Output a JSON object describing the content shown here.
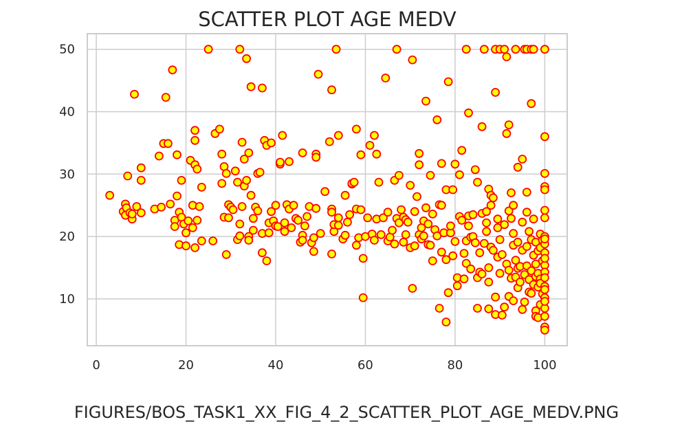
{
  "chart_data": {
    "type": "scatter",
    "title": "SCATTER PLOT AGE MEDV",
    "xlabel": "",
    "ylabel": "",
    "xlim": [
      -2,
      105
    ],
    "ylim": [
      2.5,
      52.5
    ],
    "xticks": [
      0,
      20,
      40,
      60,
      80,
      100
    ],
    "yticks": [
      10,
      20,
      30,
      40,
      50
    ],
    "grid": true,
    "legend": "none",
    "marker_fill": "#ffff00",
    "marker_edge": "#ff0000",
    "points": [
      [
        3,
        26.6
      ],
      [
        6,
        24
      ],
      [
        6.5,
        25.2
      ],
      [
        6.7,
        24.6
      ],
      [
        6.5,
        23.4
      ],
      [
        7,
        29.7
      ],
      [
        7.5,
        23.8
      ],
      [
        8,
        22.8
      ],
      [
        8,
        23.6
      ],
      [
        8.5,
        42.8
      ],
      [
        9,
        24.8
      ],
      [
        10,
        23.8
      ],
      [
        10,
        31
      ],
      [
        10,
        29
      ],
      [
        13,
        24.4
      ],
      [
        14,
        32.9
      ],
      [
        14.5,
        24.7
      ],
      [
        15,
        34.9
      ],
      [
        15.5,
        42.3
      ],
      [
        16,
        34.9
      ],
      [
        16.5,
        25.2
      ],
      [
        17,
        46.7
      ],
      [
        17.5,
        22.6
      ],
      [
        17.5,
        21.6
      ],
      [
        18,
        33.1
      ],
      [
        18,
        26.5
      ],
      [
        18.5,
        23.9
      ],
      [
        18.5,
        18.7
      ],
      [
        19,
        29
      ],
      [
        19,
        23.1
      ],
      [
        19.5,
        22
      ],
      [
        20,
        20.6
      ],
      [
        20,
        18.5
      ],
      [
        20.5,
        22.5
      ],
      [
        21,
        32.2
      ],
      [
        21.5,
        25
      ],
      [
        21.5,
        21.4
      ],
      [
        22,
        37
      ],
      [
        22,
        35.4
      ],
      [
        22,
        31.5
      ],
      [
        22,
        18.2
      ],
      [
        22.5,
        30.8
      ],
      [
        22.5,
        22.6
      ],
      [
        23,
        24.8
      ],
      [
        23.5,
        19.3
      ],
      [
        23.5,
        27.9
      ],
      [
        25,
        50
      ],
      [
        26,
        19.3
      ],
      [
        26.5,
        36.5
      ],
      [
        27.5,
        37.2
      ],
      [
        28,
        33.2
      ],
      [
        28,
        28.5
      ],
      [
        28.5,
        23.1
      ],
      [
        28.5,
        31.2
      ],
      [
        29,
        17.1
      ],
      [
        29,
        30.1
      ],
      [
        29.5,
        23
      ],
      [
        29.5,
        25.1
      ],
      [
        30,
        24.7
      ],
      [
        30.5,
        24.3
      ],
      [
        31,
        30.5
      ],
      [
        31.5,
        28.7
      ],
      [
        31.5,
        19.5
      ],
      [
        32,
        20.1
      ],
      [
        32,
        22
      ],
      [
        32,
        50
      ],
      [
        32.5,
        35.1
      ],
      [
        32.5,
        24.8
      ],
      [
        33,
        28.1
      ],
      [
        33,
        32.4
      ],
      [
        33.5,
        29
      ],
      [
        33.5,
        48.5
      ],
      [
        34,
        20
      ],
      [
        34,
        33.4
      ],
      [
        34,
        19.4
      ],
      [
        34.5,
        44
      ],
      [
        34.5,
        26.6
      ],
      [
        35,
        22.9
      ],
      [
        35,
        21
      ],
      [
        35.5,
        24.7
      ],
      [
        36,
        24.1
      ],
      [
        36,
        30.1
      ],
      [
        36.5,
        30.3
      ],
      [
        37,
        17.4
      ],
      [
        37,
        20.5
      ],
      [
        37,
        43.8
      ],
      [
        37.5,
        35.4
      ],
      [
        38,
        34.6
      ],
      [
        38,
        16.1
      ],
      [
        38.5,
        22.2
      ],
      [
        38.5,
        20.6
      ],
      [
        39,
        35
      ],
      [
        39,
        24
      ],
      [
        39.5,
        22.5
      ],
      [
        40,
        21.7
      ],
      [
        40,
        25
      ],
      [
        40.5,
        21.6
      ],
      [
        41,
        31.6
      ],
      [
        41,
        31.9
      ],
      [
        41.5,
        36.2
      ],
      [
        42,
        22.2
      ],
      [
        42,
        20.8
      ],
      [
        42.5,
        25.1
      ],
      [
        43,
        24.4
      ],
      [
        43,
        32
      ],
      [
        43.5,
        21.4
      ],
      [
        44,
        25
      ],
      [
        44.5,
        22.9
      ],
      [
        45,
        22.6
      ],
      [
        45.5,
        19.1
      ],
      [
        46,
        33.4
      ],
      [
        46,
        20.2
      ],
      [
        46,
        19.4
      ],
      [
        46.5,
        21.7
      ],
      [
        47,
        23.2
      ],
      [
        47.5,
        24.8
      ],
      [
        48,
        19
      ],
      [
        48.5,
        19.8
      ],
      [
        48.5,
        17.6
      ],
      [
        49,
        24.5
      ],
      [
        49,
        33.2
      ],
      [
        49,
        32.7
      ],
      [
        49.5,
        46
      ],
      [
        50,
        20.5
      ],
      [
        51,
        27.2
      ],
      [
        52,
        35.2
      ],
      [
        52.5,
        17.2
      ],
      [
        52.5,
        24.4
      ],
      [
        52.5,
        23.9
      ],
      [
        52.5,
        43.5
      ],
      [
        53,
        20.8
      ],
      [
        53,
        21.9
      ],
      [
        53.5,
        50
      ],
      [
        54,
        36.2
      ],
      [
        54,
        21.8
      ],
      [
        54,
        23
      ],
      [
        55,
        19.6
      ],
      [
        55.5,
        26.6
      ],
      [
        55.5,
        20.2
      ],
      [
        56,
        22.3
      ],
      [
        56.5,
        23.5
      ],
      [
        57,
        28.4
      ],
      [
        57,
        28.5
      ],
      [
        57.5,
        28.7
      ],
      [
        58,
        37.2
      ],
      [
        58,
        18.6
      ],
      [
        58,
        24.4
      ],
      [
        58.5,
        19.8
      ],
      [
        59,
        24.3
      ],
      [
        59,
        33.1
      ],
      [
        59.5,
        10.2
      ],
      [
        59.5,
        16.5
      ],
      [
        60,
        20
      ],
      [
        60.5,
        23
      ],
      [
        61,
        34.6
      ],
      [
        61.5,
        20.4
      ],
      [
        62,
        36.2
      ],
      [
        62,
        19.4
      ],
      [
        62.5,
        33.2
      ],
      [
        62.5,
        22.8
      ],
      [
        63,
        28.7
      ],
      [
        63.5,
        20.3
      ],
      [
        64,
        23
      ],
      [
        64.5,
        45.4
      ],
      [
        65,
        23.9
      ],
      [
        65,
        19.3
      ],
      [
        65.5,
        19.9
      ],
      [
        66,
        21
      ],
      [
        66.5,
        18.8
      ],
      [
        66.5,
        29
      ],
      [
        67,
        22.9
      ],
      [
        67,
        50
      ],
      [
        67.5,
        29.8
      ],
      [
        67.5,
        22.2
      ],
      [
        68,
        24.3
      ],
      [
        68.5,
        23.1
      ],
      [
        68.5,
        19.1
      ],
      [
        69,
        22.7
      ],
      [
        69,
        20.3
      ],
      [
        69.5,
        22.3
      ],
      [
        70,
        18.2
      ],
      [
        70,
        28.2
      ],
      [
        70.5,
        48.3
      ],
      [
        70.5,
        11.7
      ],
      [
        71,
        24
      ],
      [
        71,
        18.5
      ],
      [
        71.5,
        26.4
      ],
      [
        72,
        31.5
      ],
      [
        72,
        33.3
      ],
      [
        72,
        20.3
      ],
      [
        72.5,
        19.6
      ],
      [
        72.5,
        21.4
      ],
      [
        73,
        22.5
      ],
      [
        73,
        20.1
      ],
      [
        73.5,
        41.7
      ],
      [
        73.5,
        24.6
      ],
      [
        74,
        22
      ],
      [
        74,
        18.7
      ],
      [
        74.5,
        29.8
      ],
      [
        74.5,
        18.6
      ],
      [
        75,
        23.6
      ],
      [
        75,
        16.1
      ],
      [
        75.5,
        21.1
      ],
      [
        76,
        20.1
      ],
      [
        76,
        38.7
      ],
      [
        76.5,
        8.5
      ],
      [
        76.5,
        25.1
      ],
      [
        77,
        31.7
      ],
      [
        77,
        17.5
      ],
      [
        77,
        25
      ],
      [
        77.5,
        20.6
      ],
      [
        78,
        6.3
      ],
      [
        78,
        27.5
      ],
      [
        78,
        16.3
      ],
      [
        78.5,
        11
      ],
      [
        78.5,
        44.8
      ],
      [
        79,
        20.6
      ],
      [
        79,
        21.7
      ],
      [
        79.5,
        27.5
      ],
      [
        79.5,
        16.9
      ],
      [
        80,
        31.6
      ],
      [
        80,
        19.2
      ],
      [
        80.5,
        13.4
      ],
      [
        80.5,
        12.1
      ],
      [
        81,
        23.2
      ],
      [
        81,
        29.9
      ],
      [
        81.5,
        22.6
      ],
      [
        81.5,
        33.8
      ],
      [
        82,
        17.3
      ],
      [
        82,
        13.2
      ],
      [
        82.5,
        19.3
      ],
      [
        82.5,
        15.7
      ],
      [
        82.5,
        50
      ],
      [
        83,
        23.3
      ],
      [
        83,
        39.8
      ],
      [
        83,
        21.7
      ],
      [
        83.5,
        19.9
      ],
      [
        83.5,
        14.8
      ],
      [
        84,
        20
      ],
      [
        84,
        23.5
      ],
      [
        84.5,
        30.7
      ],
      [
        84.5,
        19
      ],
      [
        85,
        28.7
      ],
      [
        85,
        13.4
      ],
      [
        85,
        8.5
      ],
      [
        85.5,
        17.4
      ],
      [
        85.5,
        14.3
      ],
      [
        86,
        23.7
      ],
      [
        86,
        37.6
      ],
      [
        86,
        14
      ],
      [
        86.5,
        18.9
      ],
      [
        86.5,
        50
      ],
      [
        87,
        20.8
      ],
      [
        87,
        24
      ],
      [
        87,
        22.2
      ],
      [
        87.5,
        8.4
      ],
      [
        87.5,
        27.6
      ],
      [
        87.5,
        15
      ],
      [
        87.5,
        12.7
      ],
      [
        88,
        18.3
      ],
      [
        88,
        26.6
      ],
      [
        88,
        25
      ],
      [
        88.5,
        17.8
      ],
      [
        88.5,
        26.2
      ],
      [
        89,
        43.1
      ],
      [
        89,
        50
      ],
      [
        89,
        10.3
      ],
      [
        89,
        7.5
      ],
      [
        89.5,
        21.4
      ],
      [
        89.5,
        16.7
      ],
      [
        89.5,
        22.8
      ],
      [
        90,
        14.1
      ],
      [
        90,
        50
      ],
      [
        90,
        19.5
      ],
      [
        90.5,
        7.4
      ],
      [
        90.5,
        17.1
      ],
      [
        91,
        8.7
      ],
      [
        91,
        21.9
      ],
      [
        91,
        50
      ],
      [
        91.5,
        36.5
      ],
      [
        91.5,
        48.8
      ],
      [
        91.5,
        15.6
      ],
      [
        92,
        37.9
      ],
      [
        92,
        10.4
      ],
      [
        92,
        24.1
      ],
      [
        92,
        14.6
      ],
      [
        92.5,
        22.9
      ],
      [
        92.5,
        27
      ],
      [
        92.5,
        13.3
      ],
      [
        93,
        25
      ],
      [
        93,
        20.5
      ],
      [
        93,
        18.6
      ],
      [
        93,
        9.7
      ],
      [
        93.5,
        13.5
      ],
      [
        93.5,
        50
      ],
      [
        93.5,
        16.2
      ],
      [
        94,
        31.1
      ],
      [
        94,
        19.1
      ],
      [
        94,
        14.9
      ],
      [
        94,
        11.8
      ],
      [
        94.5,
        15.2
      ],
      [
        94.5,
        12.7
      ],
      [
        95,
        32.4
      ],
      [
        95,
        22.3
      ],
      [
        95,
        17.8
      ],
      [
        95,
        8.3
      ],
      [
        95.5,
        13.9
      ],
      [
        95.5,
        50
      ],
      [
        95.5,
        9.5
      ],
      [
        96,
        27.1
      ],
      [
        96,
        23.9
      ],
      [
        96,
        18.4
      ],
      [
        96,
        15.3
      ],
      [
        96,
        50
      ],
      [
        96.5,
        20.8
      ],
      [
        96.5,
        11.1
      ],
      [
        96.5,
        13.1
      ],
      [
        97,
        41.3
      ],
      [
        97,
        50
      ],
      [
        97,
        19.5
      ],
      [
        97,
        14.5
      ],
      [
        97,
        10.9
      ],
      [
        97.5,
        17
      ],
      [
        97.5,
        12.3
      ],
      [
        97.5,
        22.8
      ],
      [
        97.5,
        50
      ],
      [
        98,
        8.1
      ],
      [
        98,
        7.2
      ],
      [
        98,
        15.6
      ],
      [
        98,
        19.1
      ],
      [
        98,
        13.6
      ],
      [
        98.5,
        14.1
      ],
      [
        98.5,
        11.9
      ],
      [
        98.5,
        17.7
      ],
      [
        98.5,
        7.0
      ],
      [
        99,
        9.1
      ],
      [
        99,
        18.2
      ],
      [
        99,
        13.2
      ],
      [
        99,
        20.4
      ],
      [
        99,
        12.5
      ],
      [
        99.5,
        10.8
      ],
      [
        99.5,
        16.1
      ],
      [
        99.5,
        19.4
      ],
      [
        100,
        50
      ],
      [
        100,
        36
      ],
      [
        100,
        30.1
      ],
      [
        100,
        28
      ],
      [
        100,
        27.5
      ],
      [
        100,
        24.2
      ],
      [
        100,
        23
      ],
      [
        100,
        20
      ],
      [
        100,
        18.8
      ],
      [
        100,
        17.4
      ],
      [
        100,
        15.4
      ],
      [
        100,
        14.3
      ],
      [
        100,
        13.4
      ],
      [
        100,
        12
      ],
      [
        100,
        11.5
      ],
      [
        100,
        10.2
      ],
      [
        100,
        8.5
      ],
      [
        100,
        7.2
      ],
      [
        100,
        5.5
      ],
      [
        100,
        5
      ],
      [
        100,
        9.6
      ],
      [
        100,
        16.5
      ],
      [
        100,
        19.6
      ]
    ]
  },
  "figure_caption": "FIGURES/BOS_TASK1_XX_FIG_4_2_SCATTER_PLOT_AGE_MEDV.PNG"
}
